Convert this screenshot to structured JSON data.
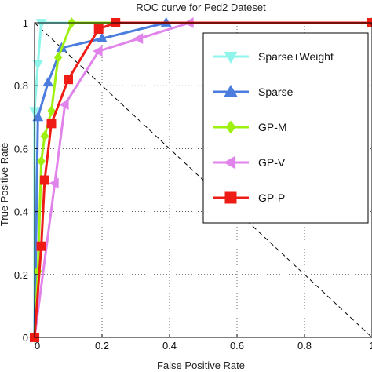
{
  "chart_data": {
    "type": "line",
    "title": "ROC curve for Ped2 Dateset",
    "xlabel": "False Positive Rate",
    "ylabel": "True Positive Rate",
    "xlim": [
      0,
      1
    ],
    "ylim": [
      0,
      1
    ],
    "xticks": [
      "0",
      "0.2",
      "0.4",
      "0.6",
      "0.8",
      "1"
    ],
    "yticks": [
      "0",
      "0.2",
      "0.4",
      "0.6",
      "0.8",
      "1"
    ],
    "grid": true,
    "legend_position": "top-right",
    "diagonal": {
      "style": "dashed",
      "color": "#000000"
    },
    "series": [
      {
        "name": "Sparse+Weight",
        "color": "#8ff5ea",
        "marker": "triangle-down",
        "x": [
          0,
          0,
          0.01,
          0.02,
          1
        ],
        "y": [
          0,
          0.72,
          0.87,
          1.0,
          1.0
        ]
      },
      {
        "name": "Sparse",
        "color": "#4a7dde",
        "marker": "triangle-up",
        "x": [
          0,
          0.01,
          0.04,
          0.08,
          0.2,
          0.39,
          1
        ],
        "y": [
          0,
          0.7,
          0.81,
          0.92,
          0.95,
          1.0,
          1.0
        ]
      },
      {
        "name": "GP-M",
        "color": "#9df00f",
        "marker": "diamond",
        "x": [
          0,
          0.01,
          0.02,
          0.03,
          0.05,
          0.07,
          0.11,
          1
        ],
        "y": [
          0,
          0.21,
          0.56,
          0.64,
          0.72,
          0.89,
          1.0,
          1.0
        ]
      },
      {
        "name": "GP-V",
        "color": "#e083ea",
        "marker": "triangle-left",
        "x": [
          0,
          0.06,
          0.09,
          0.19,
          0.31,
          0.46,
          1
        ],
        "y": [
          0,
          0.49,
          0.74,
          0.91,
          0.95,
          1.0,
          1.0
        ]
      },
      {
        "name": "GP-P",
        "color": "#ee1c14",
        "marker": "square",
        "x": [
          0,
          0.02,
          0.03,
          0.05,
          0.1,
          0.19,
          0.24,
          1
        ],
        "y": [
          0,
          0.29,
          0.5,
          0.68,
          0.82,
          0.98,
          1.0,
          1.0
        ]
      }
    ]
  }
}
